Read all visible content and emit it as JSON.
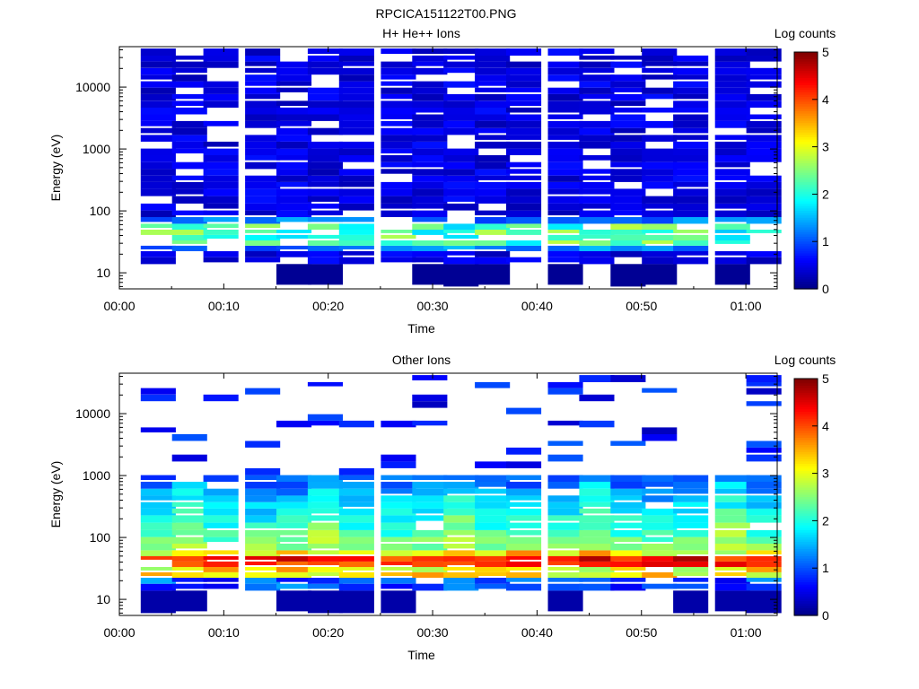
{
  "figure_title": "RPCICA151122T00.PNG",
  "chart_data": [
    {
      "type": "heatmap",
      "title": "H+ He++ Ions",
      "xlabel": "Time",
      "ylabel": "Energy (eV)",
      "colorbar_label": "Log counts",
      "y_scale": "log",
      "ylim": [
        5.5,
        45000
      ],
      "xlim": [
        "00:00",
        "01:03"
      ],
      "x_ticks": [
        "00:00",
        "00:10",
        "00:20",
        "00:30",
        "00:40",
        "00:50",
        "01:00"
      ],
      "y_ticks": [
        "10",
        "100",
        "1000",
        "10000"
      ],
      "colorbar_ticks": [
        "0",
        "1",
        "2",
        "3",
        "4",
        "5"
      ],
      "colorbar_range": [
        0,
        5
      ],
      "time_bins": [
        "00:02",
        "00:05",
        "00:08",
        "00:12",
        "00:15",
        "00:18",
        "00:21",
        "00:25",
        "00:28",
        "00:31",
        "00:34",
        "00:37",
        "00:41",
        "00:44",
        "00:47",
        "00:50",
        "00:53",
        "00:57",
        "01:00"
      ],
      "energy_bands_eV": [
        12,
        16,
        20,
        25,
        30,
        37,
        45,
        55,
        70,
        90,
        115,
        150,
        200,
        260,
        330,
        420,
        540,
        700,
        900,
        1150,
        1500,
        1900,
        2500,
        3200,
        4100,
        5300,
        6800,
        8700,
        11000,
        14000,
        18000,
        23000,
        29000,
        36000
      ],
      "profile": "ion_peak",
      "description": "Low-level counts (log 0-1) across 15 eV to 40 keV with a peak near 40-60 eV reaching log counts ~2-3"
    },
    {
      "type": "heatmap",
      "title": "Other Ions",
      "xlabel": "Time",
      "ylabel": "Energy (eV)",
      "colorbar_label": "Log counts",
      "y_scale": "log",
      "ylim": [
        5.5,
        45000
      ],
      "xlim": [
        "00:00",
        "01:03"
      ],
      "x_ticks": [
        "00:00",
        "00:10",
        "00:20",
        "00:30",
        "00:40",
        "00:50",
        "01:00"
      ],
      "y_ticks": [
        "10",
        "100",
        "1000",
        "10000"
      ],
      "colorbar_ticks": [
        "0",
        "1",
        "2",
        "3",
        "4",
        "5"
      ],
      "colorbar_range": [
        0,
        5
      ],
      "time_bins": [
        "00:02",
        "00:05",
        "00:08",
        "00:12",
        "00:15",
        "00:18",
        "00:21",
        "00:25",
        "00:28",
        "00:31",
        "00:34",
        "00:37",
        "00:41",
        "00:44",
        "00:47",
        "00:50",
        "00:53",
        "00:57",
        "01:00"
      ],
      "energy_bands_eV": [
        12,
        16,
        20,
        25,
        30,
        37,
        45,
        55,
        70,
        90,
        115,
        150,
        200,
        260,
        330,
        420,
        540,
        700,
        900,
        1150,
        1500,
        1900,
        2500,
        3200,
        4100,
        5300,
        6800,
        8700,
        11000,
        14000,
        18000,
        23000,
        29000,
        36000
      ],
      "profile": "heavy_peak",
      "description": "Strong peak (log counts ~4-5) near 30-60 eV, moderate counts 60 eV-1 keV, sparse counts above"
    }
  ]
}
